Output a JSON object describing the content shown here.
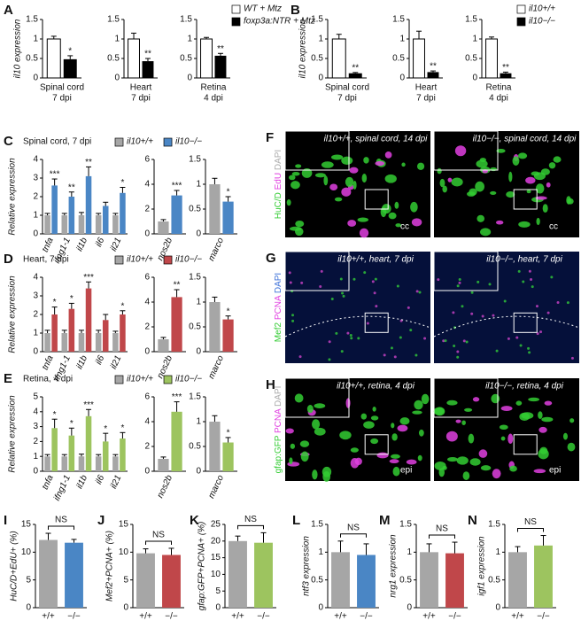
{
  "chart_data": [
    {
      "panel": "A",
      "type": "bar",
      "ylabel": "il10 expression",
      "series": [
        {
          "name": "WT + Mtz",
          "color": "#ffffff"
        },
        {
          "name": "foxp3a:NTR + Mtz",
          "color": "#000000"
        }
      ],
      "subplots": [
        {
          "xlabel": [
            "Spinal cord",
            "7 dpi"
          ],
          "ylim": [
            0,
            1.5
          ],
          "yticks": [
            0,
            0.5,
            1,
            1.5
          ],
          "series": [
            {
              "values": [
                1.0
              ],
              "errors": [
                0.07
              ]
            },
            {
              "values": [
                0.48
              ],
              "errors": [
                0.09
              ]
            }
          ],
          "significance": [
            "*"
          ]
        },
        {
          "xlabel": [
            "Heart",
            "7 dpi"
          ],
          "ylim": [
            0,
            1.5
          ],
          "yticks": [
            0,
            0.5,
            1,
            1.5
          ],
          "series": [
            {
              "values": [
                1.0
              ],
              "errors": [
                0.15
              ]
            },
            {
              "values": [
                0.43
              ],
              "errors": [
                0.07
              ]
            }
          ],
          "significance": [
            "**"
          ]
        },
        {
          "xlabel": [
            "Retina",
            "4 dpi"
          ],
          "ylim": [
            0,
            1.5
          ],
          "yticks": [
            0,
            0.5,
            1,
            1.5
          ],
          "series": [
            {
              "values": [
                1.0
              ],
              "errors": [
                0.04
              ]
            },
            {
              "values": [
                0.57
              ],
              "errors": [
                0.06
              ]
            }
          ],
          "significance": [
            "**"
          ]
        }
      ]
    },
    {
      "panel": "B",
      "type": "bar",
      "ylabel": "il10 expression",
      "series": [
        {
          "name": "il10+/+",
          "color": "#ffffff"
        },
        {
          "name": "il10−/−",
          "color": "#000000"
        }
      ],
      "subplots": [
        {
          "xlabel": [
            "Spinal cord",
            "7 dpi"
          ],
          "ylim": [
            0,
            1.5
          ],
          "yticks": [
            0,
            0.5,
            1,
            1.5
          ],
          "series": [
            {
              "values": [
                1.0
              ],
              "errors": [
                0.12
              ]
            },
            {
              "values": [
                0.12
              ],
              "errors": [
                0.02
              ]
            }
          ],
          "significance": [
            "**"
          ]
        },
        {
          "xlabel": [
            "Heart",
            "7 dpi"
          ],
          "ylim": [
            0,
            1.5
          ],
          "yticks": [
            0,
            0.5,
            1,
            1.5
          ],
          "series": [
            {
              "values": [
                1.0
              ],
              "errors": [
                0.2
              ]
            },
            {
              "values": [
                0.15
              ],
              "errors": [
                0.03
              ]
            }
          ],
          "significance": [
            "**"
          ]
        },
        {
          "xlabel": [
            "Retina",
            "4 dpi"
          ],
          "ylim": [
            0,
            1.5
          ],
          "yticks": [
            0,
            0.5,
            1,
            1.5
          ],
          "series": [
            {
              "values": [
                1.0
              ],
              "errors": [
                0.05
              ]
            },
            {
              "values": [
                0.12
              ],
              "errors": [
                0.03
              ]
            }
          ],
          "significance": [
            "**"
          ]
        }
      ]
    },
    {
      "panel": "C",
      "type": "bar",
      "title": "Spinal cord, 7 dpi",
      "ylabel": "Relative expression",
      "series": [
        {
          "name": "il10+/+",
          "color": "#a6a6a6"
        },
        {
          "name": "il10−/−",
          "color": "#4a86c5"
        }
      ],
      "subplots": [
        {
          "categories": [
            "tnfa",
            "ifng1-1",
            "il1b",
            "il6",
            "il21"
          ],
          "ylim": [
            0,
            4
          ],
          "yticks": [
            0,
            1,
            2,
            3,
            4
          ],
          "series": [
            {
              "values": [
                1.0,
                1.0,
                1.0,
                1.0,
                1.0
              ],
              "errors": [
                0.1,
                0.1,
                0.15,
                0.1,
                0.1
              ]
            },
            {
              "values": [
                2.6,
                2.0,
                3.1,
                1.5,
                2.2
              ],
              "errors": [
                0.35,
                0.25,
                0.5,
                0.2,
                0.3
              ]
            }
          ],
          "significance": [
            "***",
            "**",
            "**",
            null,
            "*"
          ]
        },
        {
          "categories": [
            "nos2b"
          ],
          "ylim": [
            0,
            6
          ],
          "yticks": [
            0,
            2,
            4,
            6
          ],
          "series": [
            {
              "values": [
                1.0
              ],
              "errors": [
                0.15
              ]
            },
            {
              "values": [
                3.1
              ],
              "errors": [
                0.4
              ]
            }
          ],
          "significance": [
            "***"
          ]
        },
        {
          "categories": [
            "marco"
          ],
          "ylim": [
            0,
            1.5
          ],
          "yticks": [
            0,
            0.5,
            1,
            1.5
          ],
          "series": [
            {
              "values": [
                1.0
              ],
              "errors": [
                0.12
              ]
            },
            {
              "values": [
                0.65
              ],
              "errors": [
                0.1
              ]
            }
          ],
          "significance": [
            "*"
          ]
        }
      ]
    },
    {
      "panel": "D",
      "type": "bar",
      "title": "Heart, 7 dpi",
      "ylabel": "Relative expression",
      "series": [
        {
          "name": "il10+/+",
          "color": "#a6a6a6"
        },
        {
          "name": "il10−/−",
          "color": "#c0474a"
        }
      ],
      "subplots": [
        {
          "categories": [
            "tnfa",
            "ifng1-1",
            "il1b",
            "il6",
            "il21"
          ],
          "ylim": [
            0,
            4
          ],
          "yticks": [
            0,
            1,
            2,
            3,
            4
          ],
          "series": [
            {
              "values": [
                1.0,
                1.0,
                1.0,
                1.0,
                1.0
              ],
              "errors": [
                0.15,
                0.15,
                0.15,
                0.15,
                0.1
              ]
            },
            {
              "values": [
                2.0,
                2.3,
                3.4,
                1.7,
                2.0
              ],
              "errors": [
                0.4,
                0.3,
                0.35,
                0.3,
                0.2
              ]
            }
          ],
          "significance": [
            "*",
            "*",
            "***",
            null,
            "*"
          ]
        },
        {
          "categories": [
            "nos2b"
          ],
          "ylim": [
            0,
            6
          ],
          "yticks": [
            0,
            2,
            4,
            6
          ],
          "series": [
            {
              "values": [
                1.0
              ],
              "errors": [
                0.15
              ]
            },
            {
              "values": [
                4.4
              ],
              "errors": [
                0.6
              ]
            }
          ],
          "significance": [
            "**"
          ]
        },
        {
          "categories": [
            "marco"
          ],
          "ylim": [
            0,
            1.5
          ],
          "yticks": [
            0,
            0.5,
            1,
            1.5
          ],
          "series": [
            {
              "values": [
                1.0
              ],
              "errors": [
                0.1
              ]
            },
            {
              "values": [
                0.65
              ],
              "errors": [
                0.07
              ]
            }
          ],
          "significance": [
            "*"
          ]
        }
      ]
    },
    {
      "panel": "E",
      "type": "bar",
      "title": "Retina, 4 dpi",
      "ylabel": "Relative expression",
      "series": [
        {
          "name": "il10+/+",
          "color": "#a6a6a6"
        },
        {
          "name": "il10−/−",
          "color": "#9dc45f"
        }
      ],
      "subplots": [
        {
          "categories": [
            "tnfa",
            "ifng1-1",
            "il1b",
            "il6",
            "il21"
          ],
          "ylim": [
            0,
            5
          ],
          "yticks": [
            0,
            1,
            2,
            3,
            4,
            5
          ],
          "series": [
            {
              "values": [
                1.0,
                1.0,
                1.0,
                1.0,
                1.0
              ],
              "errors": [
                0.12,
                0.12,
                0.15,
                0.12,
                0.12
              ]
            },
            {
              "values": [
                2.9,
                2.4,
                3.7,
                2.0,
                2.2
              ],
              "errors": [
                0.6,
                0.5,
                0.45,
                0.55,
                0.4
              ]
            }
          ],
          "significance": [
            "*",
            "*",
            "***",
            "*",
            "*"
          ]
        },
        {
          "categories": [
            "nos2b"
          ],
          "ylim": [
            0,
            6
          ],
          "yticks": [
            0,
            2,
            4,
            6
          ],
          "series": [
            {
              "values": [
                1.0
              ],
              "errors": [
                0.15
              ]
            },
            {
              "values": [
                4.8
              ],
              "errors": [
                0.8
              ]
            }
          ],
          "significance": [
            "***"
          ]
        },
        {
          "categories": [
            "marco"
          ],
          "ylim": [
            0,
            1.5
          ],
          "yticks": [
            0,
            0.5,
            1,
            1.5
          ],
          "series": [
            {
              "values": [
                1.0
              ],
              "errors": [
                0.12
              ]
            },
            {
              "values": [
                0.58
              ],
              "errors": [
                0.1
              ]
            }
          ],
          "significance": [
            "*"
          ]
        }
      ]
    },
    {
      "panel": "I",
      "type": "bar",
      "ylabel": "HuC/D+EdU+ (%)",
      "categories": [
        "+/+",
        "−/−"
      ],
      "colors": [
        "#a6a6a6",
        "#4a86c5"
      ],
      "values": [
        12.2,
        11.7
      ],
      "errors": [
        1.2,
        0.6
      ],
      "annotation": "NS",
      "ylim": [
        0,
        15
      ],
      "yticks": [
        0,
        5,
        10,
        15
      ]
    },
    {
      "panel": "J",
      "type": "bar",
      "ylabel": "Mef2+PCNA+ (%)",
      "categories": [
        "+/+",
        "−/−"
      ],
      "colors": [
        "#a6a6a6",
        "#c0474a"
      ],
      "values": [
        9.8,
        9.5
      ],
      "errors": [
        0.8,
        1.2
      ],
      "annotation": "NS",
      "ylim": [
        0,
        15
      ],
      "yticks": [
        0,
        5,
        10,
        15
      ]
    },
    {
      "panel": "K",
      "type": "bar",
      "ylabel": "gfap:GFP+PCNA+ (%)",
      "categories": [
        "+/+",
        "−/−"
      ],
      "colors": [
        "#a6a6a6",
        "#9dc45f"
      ],
      "values": [
        20.0,
        19.5
      ],
      "errors": [
        1.5,
        3.0
      ],
      "annotation": "NS",
      "ylim": [
        0,
        25
      ],
      "yticks": [
        0,
        5,
        10,
        15,
        20,
        25
      ]
    },
    {
      "panel": "L",
      "type": "bar",
      "ylabel": "ntf3 expression",
      "categories": [
        "+/+",
        "−/−"
      ],
      "colors": [
        "#a6a6a6",
        "#4a86c5"
      ],
      "values": [
        1.0,
        0.95
      ],
      "errors": [
        0.2,
        0.2
      ],
      "annotation": "NS",
      "ylim": [
        0,
        1.5
      ],
      "yticks": [
        0,
        0.5,
        1,
        1.5
      ]
    },
    {
      "panel": "M",
      "type": "bar",
      "ylabel": "nrg1 expression",
      "categories": [
        "+/+",
        "−/−"
      ],
      "colors": [
        "#a6a6a6",
        "#c0474a"
      ],
      "values": [
        1.0,
        0.98
      ],
      "errors": [
        0.15,
        0.2
      ],
      "annotation": "NS",
      "ylim": [
        0,
        1.5
      ],
      "yticks": [
        0,
        0.5,
        1,
        1.5
      ]
    },
    {
      "panel": "N",
      "type": "bar",
      "ylabel": "igf1 expression",
      "categories": [
        "+/+",
        "−/−"
      ],
      "colors": [
        "#a6a6a6",
        "#9dc45f"
      ],
      "values": [
        1.0,
        1.12
      ],
      "errors": [
        0.1,
        0.18
      ],
      "annotation": "NS",
      "ylim": [
        0,
        1.5
      ],
      "yticks": [
        0,
        0.5,
        1,
        1.5
      ]
    }
  ],
  "image_panels": [
    {
      "panel": "F",
      "channels": [
        {
          "name": "HuC/D",
          "color": "#33cc33"
        },
        {
          "name": "EdU",
          "color": "#e040e0"
        },
        {
          "name": "DAPI",
          "color": "#aaaaaa"
        }
      ],
      "images": [
        {
          "title": "il10+/+, spinal cord, 14 dpi",
          "label": "cc"
        },
        {
          "title": "il10−/−, spinal cord, 14 dpi",
          "label": "cc"
        }
      ]
    },
    {
      "panel": "G",
      "channels": [
        {
          "name": "Mef2",
          "color": "#33cc33"
        },
        {
          "name": "PCNA",
          "color": "#e040e0"
        },
        {
          "name": "DAPI",
          "color": "#3a6fd8"
        }
      ],
      "images": [
        {
          "title": "il10+/+, heart, 7 dpi"
        },
        {
          "title": "il10−/−, heart, 7 dpi"
        }
      ]
    },
    {
      "panel": "H",
      "channels": [
        {
          "name": "gfap:GFP",
          "color": "#33cc33"
        },
        {
          "name": "PCNA",
          "color": "#e040e0"
        },
        {
          "name": "DAPI",
          "color": "#aaaaaa"
        }
      ],
      "images": [
        {
          "title": "il10+/+, retina, 4 dpi",
          "label": "epi"
        },
        {
          "title": "il10−/−, retina, 4 dpi",
          "label": "epi"
        }
      ]
    }
  ]
}
